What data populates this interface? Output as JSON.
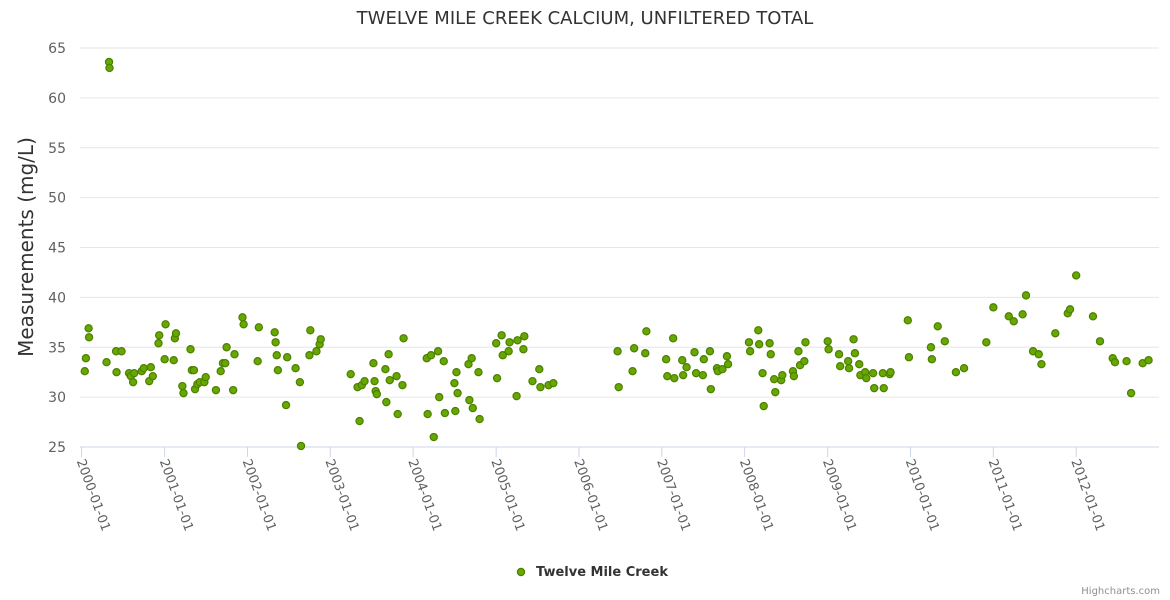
{
  "chart_data": {
    "type": "scatter",
    "title": "TWELVE MILE CREEK CALCIUM, UNFILTERED TOTAL",
    "ylabel": "Measurements (mg/L)",
    "xlabel": "",
    "ylim": [
      25,
      65
    ],
    "yticks": [
      25,
      30,
      35,
      40,
      45,
      50,
      55,
      60,
      65
    ],
    "xlim": [
      "1999-12-25",
      "2012-12-31"
    ],
    "xticks": [
      "2000-01-01",
      "2001-01-01",
      "2002-01-01",
      "2003-01-01",
      "2004-01-01",
      "2005-01-01",
      "2006-01-01",
      "2007-01-01",
      "2008-01-01",
      "2009-01-01",
      "2010-01-01",
      "2011-01-01",
      "2012-01-01"
    ],
    "grid": true,
    "legend_position": "bottom-center",
    "series": [
      {
        "name": "Twelve Mile Creek",
        "color": "#66a800",
        "points": [
          {
            "x": "2000-01-15",
            "y": 32.6
          },
          {
            "x": "2000-01-20",
            "y": 33.9
          },
          {
            "x": "2000-02-01",
            "y": 36.9
          },
          {
            "x": "2000-02-03",
            "y": 36.0
          },
          {
            "x": "2000-04-20",
            "y": 33.5
          },
          {
            "x": "2000-05-01",
            "y": 63.6
          },
          {
            "x": "2000-05-03",
            "y": 63.0
          },
          {
            "x": "2000-06-01",
            "y": 34.6
          },
          {
            "x": "2000-06-03",
            "y": 32.5
          },
          {
            "x": "2000-06-25",
            "y": 34.6
          },
          {
            "x": "2000-07-28",
            "y": 32.4
          },
          {
            "x": "2000-08-05",
            "y": 32.1
          },
          {
            "x": "2000-08-15",
            "y": 31.5
          },
          {
            "x": "2000-08-20",
            "y": 32.4
          },
          {
            "x": "2000-09-22",
            "y": 32.6
          },
          {
            "x": "2000-10-01",
            "y": 32.9
          },
          {
            "x": "2000-10-25",
            "y": 31.6
          },
          {
            "x": "2000-11-01",
            "y": 33.0
          },
          {
            "x": "2000-11-10",
            "y": 32.1
          },
          {
            "x": "2000-12-05",
            "y": 35.4
          },
          {
            "x": "2000-12-08",
            "y": 36.2
          },
          {
            "x": "2001-01-01",
            "y": 33.8
          },
          {
            "x": "2001-01-05",
            "y": 37.3
          },
          {
            "x": "2001-02-10",
            "y": 33.7
          },
          {
            "x": "2001-02-15",
            "y": 35.9
          },
          {
            "x": "2001-02-20",
            "y": 36.4
          },
          {
            "x": "2001-03-20",
            "y": 31.1
          },
          {
            "x": "2001-03-25",
            "y": 30.4
          },
          {
            "x": "2001-04-25",
            "y": 34.8
          },
          {
            "x": "2001-05-01",
            "y": 32.7
          },
          {
            "x": "2001-05-10",
            "y": 32.7
          },
          {
            "x": "2001-05-15",
            "y": 30.8
          },
          {
            "x": "2001-05-25",
            "y": 31.3
          },
          {
            "x": "2001-06-05",
            "y": 31.5
          },
          {
            "x": "2001-06-25",
            "y": 31.5
          },
          {
            "x": "2001-07-01",
            "y": 32.0
          },
          {
            "x": "2001-08-15",
            "y": 30.7
          },
          {
            "x": "2001-09-05",
            "y": 32.6
          },
          {
            "x": "2001-09-15",
            "y": 33.4
          },
          {
            "x": "2001-09-25",
            "y": 33.4
          },
          {
            "x": "2001-10-01",
            "y": 35.0
          },
          {
            "x": "2001-10-30",
            "y": 30.7
          },
          {
            "x": "2001-11-05",
            "y": 34.3
          },
          {
            "x": "2001-12-10",
            "y": 38.0
          },
          {
            "x": "2001-12-15",
            "y": 37.3
          },
          {
            "x": "2002-02-15",
            "y": 33.6
          },
          {
            "x": "2002-02-20",
            "y": 37.0
          },
          {
            "x": "2002-05-01",
            "y": 36.5
          },
          {
            "x": "2002-05-05",
            "y": 35.5
          },
          {
            "x": "2002-05-10",
            "y": 34.2
          },
          {
            "x": "2002-05-15",
            "y": 32.7
          },
          {
            "x": "2002-06-20",
            "y": 29.2
          },
          {
            "x": "2002-06-25",
            "y": 34.0
          },
          {
            "x": "2002-08-01",
            "y": 32.9
          },
          {
            "x": "2002-08-20",
            "y": 31.5
          },
          {
            "x": "2002-08-25",
            "y": 25.1
          },
          {
            "x": "2002-10-01",
            "y": 34.2
          },
          {
            "x": "2002-10-05",
            "y": 36.7
          },
          {
            "x": "2002-11-01",
            "y": 34.6
          },
          {
            "x": "2002-11-15",
            "y": 35.3
          },
          {
            "x": "2002-11-20",
            "y": 35.8
          },
          {
            "x": "2003-04-01",
            "y": 32.3
          },
          {
            "x": "2003-05-01",
            "y": 31.0
          },
          {
            "x": "2003-05-10",
            "y": 27.6
          },
          {
            "x": "2003-05-20",
            "y": 31.2
          },
          {
            "x": "2003-06-01",
            "y": 31.6
          },
          {
            "x": "2003-07-10",
            "y": 33.4
          },
          {
            "x": "2003-07-15",
            "y": 31.6
          },
          {
            "x": "2003-07-20",
            "y": 30.6
          },
          {
            "x": "2003-07-25",
            "y": 30.3
          },
          {
            "x": "2003-09-01",
            "y": 32.8
          },
          {
            "x": "2003-09-05",
            "y": 29.5
          },
          {
            "x": "2003-09-15",
            "y": 34.3
          },
          {
            "x": "2003-09-20",
            "y": 31.7
          },
          {
            "x": "2003-10-20",
            "y": 32.1
          },
          {
            "x": "2003-10-25",
            "y": 28.3
          },
          {
            "x": "2003-11-15",
            "y": 31.2
          },
          {
            "x": "2003-11-20",
            "y": 35.9
          },
          {
            "x": "2004-03-01",
            "y": 33.9
          },
          {
            "x": "2004-03-05",
            "y": 28.3
          },
          {
            "x": "2004-03-20",
            "y": 34.2
          },
          {
            "x": "2004-04-01",
            "y": 26.0
          },
          {
            "x": "2004-04-20",
            "y": 34.6
          },
          {
            "x": "2004-04-25",
            "y": 30.0
          },
          {
            "x": "2004-05-15",
            "y": 33.6
          },
          {
            "x": "2004-05-20",
            "y": 28.4
          },
          {
            "x": "2004-07-01",
            "y": 31.4
          },
          {
            "x": "2004-07-05",
            "y": 28.6
          },
          {
            "x": "2004-07-10",
            "y": 32.5
          },
          {
            "x": "2004-07-15",
            "y": 30.4
          },
          {
            "x": "2004-09-01",
            "y": 33.3
          },
          {
            "x": "2004-09-05",
            "y": 29.7
          },
          {
            "x": "2004-09-15",
            "y": 33.9
          },
          {
            "x": "2004-09-20",
            "y": 28.9
          },
          {
            "x": "2004-10-15",
            "y": 32.5
          },
          {
            "x": "2004-10-20",
            "y": 27.8
          },
          {
            "x": "2005-01-01",
            "y": 35.4
          },
          {
            "x": "2005-01-05",
            "y": 31.9
          },
          {
            "x": "2005-01-25",
            "y": 36.2
          },
          {
            "x": "2005-01-30",
            "y": 34.2
          },
          {
            "x": "2005-02-25",
            "y": 34.6
          },
          {
            "x": "2005-03-01",
            "y": 35.5
          },
          {
            "x": "2005-04-01",
            "y": 30.1
          },
          {
            "x": "2005-04-05",
            "y": 35.7
          },
          {
            "x": "2005-05-01",
            "y": 34.8
          },
          {
            "x": "2005-05-05",
            "y": 36.1
          },
          {
            "x": "2005-06-10",
            "y": 31.6
          },
          {
            "x": "2005-07-10",
            "y": 32.8
          },
          {
            "x": "2005-07-15",
            "y": 31.0
          },
          {
            "x": "2005-08-20",
            "y": 31.2
          },
          {
            "x": "2005-09-10",
            "y": 31.4
          },
          {
            "x": "2006-06-20",
            "y": 34.6
          },
          {
            "x": "2006-06-25",
            "y": 31.0
          },
          {
            "x": "2006-08-25",
            "y": 32.6
          },
          {
            "x": "2006-09-01",
            "y": 34.9
          },
          {
            "x": "2006-10-20",
            "y": 34.4
          },
          {
            "x": "2006-10-25",
            "y": 36.6
          },
          {
            "x": "2007-01-20",
            "y": 33.8
          },
          {
            "x": "2007-01-25",
            "y": 32.1
          },
          {
            "x": "2007-02-20",
            "y": 35.9
          },
          {
            "x": "2007-02-25",
            "y": 31.9
          },
          {
            "x": "2007-04-01",
            "y": 33.7
          },
          {
            "x": "2007-04-05",
            "y": 32.2
          },
          {
            "x": "2007-04-20",
            "y": 33.0
          },
          {
            "x": "2007-05-25",
            "y": 34.5
          },
          {
            "x": "2007-06-01",
            "y": 32.4
          },
          {
            "x": "2007-07-01",
            "y": 32.2
          },
          {
            "x": "2007-07-05",
            "y": 33.8
          },
          {
            "x": "2007-08-01",
            "y": 34.6
          },
          {
            "x": "2007-08-05",
            "y": 30.8
          },
          {
            "x": "2007-09-01",
            "y": 32.9
          },
          {
            "x": "2007-09-05",
            "y": 32.6
          },
          {
            "x": "2007-09-25",
            "y": 32.8
          },
          {
            "x": "2007-10-15",
            "y": 34.1
          },
          {
            "x": "2007-10-20",
            "y": 33.3
          },
          {
            "x": "2008-01-20",
            "y": 35.5
          },
          {
            "x": "2008-01-25",
            "y": 34.6
          },
          {
            "x": "2008-03-01",
            "y": 36.7
          },
          {
            "x": "2008-03-05",
            "y": 35.3
          },
          {
            "x": "2008-03-20",
            "y": 32.4
          },
          {
            "x": "2008-03-25",
            "y": 29.1
          },
          {
            "x": "2008-04-20",
            "y": 35.4
          },
          {
            "x": "2008-04-25",
            "y": 34.3
          },
          {
            "x": "2008-05-10",
            "y": 31.8
          },
          {
            "x": "2008-05-15",
            "y": 30.5
          },
          {
            "x": "2008-06-10",
            "y": 31.7
          },
          {
            "x": "2008-06-15",
            "y": 32.2
          },
          {
            "x": "2008-08-01",
            "y": 32.6
          },
          {
            "x": "2008-08-05",
            "y": 32.1
          },
          {
            "x": "2008-08-25",
            "y": 34.6
          },
          {
            "x": "2008-09-01",
            "y": 33.2
          },
          {
            "x": "2008-09-20",
            "y": 33.6
          },
          {
            "x": "2008-09-25",
            "y": 35.5
          },
          {
            "x": "2009-01-01",
            "y": 35.6
          },
          {
            "x": "2009-01-05",
            "y": 34.8
          },
          {
            "x": "2009-02-20",
            "y": 34.3
          },
          {
            "x": "2009-02-25",
            "y": 33.1
          },
          {
            "x": "2009-04-01",
            "y": 33.6
          },
          {
            "x": "2009-04-05",
            "y": 32.9
          },
          {
            "x": "2009-04-25",
            "y": 35.8
          },
          {
            "x": "2009-05-01",
            "y": 34.4
          },
          {
            "x": "2009-05-20",
            "y": 33.3
          },
          {
            "x": "2009-05-25",
            "y": 32.2
          },
          {
            "x": "2009-06-15",
            "y": 32.5
          },
          {
            "x": "2009-06-20",
            "y": 31.9
          },
          {
            "x": "2009-07-20",
            "y": 32.4
          },
          {
            "x": "2009-07-25",
            "y": 30.9
          },
          {
            "x": "2009-09-01",
            "y": 32.4
          },
          {
            "x": "2009-09-05",
            "y": 30.9
          },
          {
            "x": "2009-10-01",
            "y": 32.3
          },
          {
            "x": "2009-10-05",
            "y": 32.5
          },
          {
            "x": "2009-12-20",
            "y": 37.7
          },
          {
            "x": "2009-12-25",
            "y": 34.0
          },
          {
            "x": "2010-04-01",
            "y": 35.0
          },
          {
            "x": "2010-04-05",
            "y": 33.8
          },
          {
            "x": "2010-05-01",
            "y": 37.1
          },
          {
            "x": "2010-06-01",
            "y": 35.6
          },
          {
            "x": "2010-07-20",
            "y": 32.5
          },
          {
            "x": "2010-08-25",
            "y": 32.9
          },
          {
            "x": "2010-12-01",
            "y": 35.5
          },
          {
            "x": "2011-01-01",
            "y": 39.0
          },
          {
            "x": "2011-03-10",
            "y": 38.1
          },
          {
            "x": "2011-04-01",
            "y": 37.6
          },
          {
            "x": "2011-05-10",
            "y": 38.3
          },
          {
            "x": "2011-05-25",
            "y": 40.2
          },
          {
            "x": "2011-06-25",
            "y": 34.6
          },
          {
            "x": "2011-07-20",
            "y": 34.3
          },
          {
            "x": "2011-08-01",
            "y": 33.3
          },
          {
            "x": "2011-10-01",
            "y": 36.4
          },
          {
            "x": "2011-11-25",
            "y": 38.4
          },
          {
            "x": "2011-12-05",
            "y": 38.8
          },
          {
            "x": "2012-01-01",
            "y": 42.2
          },
          {
            "x": "2012-03-15",
            "y": 38.1
          },
          {
            "x": "2012-04-15",
            "y": 35.6
          },
          {
            "x": "2012-06-10",
            "y": 33.9
          },
          {
            "x": "2012-06-20",
            "y": 33.5
          },
          {
            "x": "2012-08-10",
            "y": 33.6
          },
          {
            "x": "2012-08-30",
            "y": 30.4
          },
          {
            "x": "2012-10-20",
            "y": 33.4
          },
          {
            "x": "2012-11-15",
            "y": 33.7
          }
        ]
      }
    ]
  },
  "legend": {
    "label": "Twelve Mile Creek"
  },
  "credits": "Highcharts.com"
}
